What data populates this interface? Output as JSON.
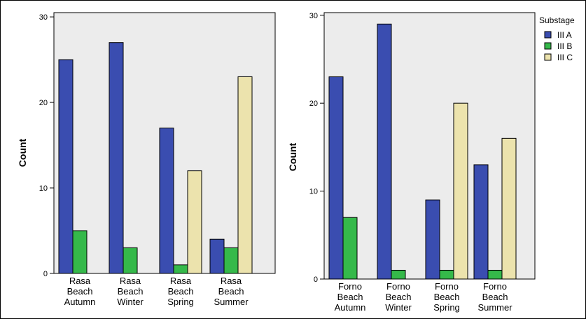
{
  "chart_data": [
    {
      "type": "bar",
      "categories": [
        [
          "Rasa",
          "Beach",
          "Autumn"
        ],
        [
          "Rasa",
          "Beach",
          "Winter"
        ],
        [
          "Rasa",
          "Beach",
          "Spring"
        ],
        [
          "Rasa",
          "Beach",
          "Summer"
        ]
      ],
      "series": [
        {
          "name": "III A",
          "values": [
            25,
            27,
            17,
            4
          ]
        },
        {
          "name": "III B",
          "values": [
            5,
            3,
            1,
            3
          ]
        },
        {
          "name": "III C",
          "values": [
            0,
            0,
            12,
            23
          ]
        }
      ],
      "ylabel": "Count",
      "yticks": [
        0,
        10,
        20,
        30
      ],
      "ylim": [
        0,
        30.5
      ]
    },
    {
      "type": "bar",
      "categories": [
        [
          "Forno",
          "Beach",
          "Autumn"
        ],
        [
          "Forno",
          "Beach",
          "Winter"
        ],
        [
          "Forno",
          "Beach",
          "Spring"
        ],
        [
          "Forno",
          "Beach",
          "Summer"
        ]
      ],
      "series": [
        {
          "name": "III A",
          "values": [
            23,
            29,
            9,
            13
          ]
        },
        {
          "name": "III B",
          "values": [
            7,
            1,
            1,
            1
          ]
        },
        {
          "name": "III C",
          "values": [
            0,
            0,
            20,
            16
          ]
        }
      ],
      "ylabel": "Count",
      "yticks": [
        0,
        10,
        20,
        30
      ],
      "ylim": [
        0,
        30.3
      ]
    }
  ],
  "legend": {
    "title": "Substage",
    "items": [
      {
        "label": "III A",
        "color": "#3a4db0"
      },
      {
        "label": "III B",
        "color": "#35b94a"
      },
      {
        "label": "III C",
        "color": "#ece3ad"
      }
    ],
    "placement": "top-right"
  },
  "plot_background": "#ececec"
}
